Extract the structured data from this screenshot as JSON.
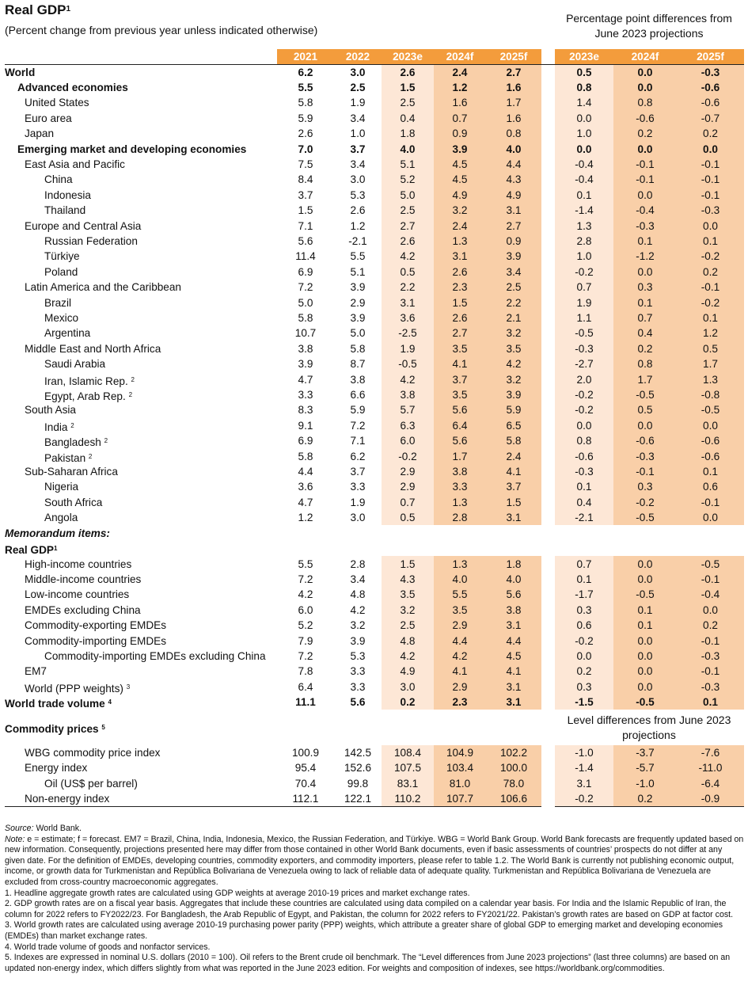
{
  "title": "Real GDP",
  "title_sup": "1",
  "subtitle": "(Percent change from previous year unless indicated otherwise)",
  "right_header": "Percentage point differences from June 2023 projections",
  "columns_left": [
    "2021",
    "2022",
    "2023e",
    "2024f",
    "2025f"
  ],
  "columns_right": [
    "2023e",
    "2024f",
    "2025f"
  ],
  "colors": {
    "header_orange": "#f39c3c",
    "shade_light": "#fde7d6",
    "shade_dark": "#f9cfa8"
  },
  "rows": [
    {
      "label": "World",
      "lvl": 0,
      "b": true,
      "v": [
        "6.2",
        "3.0",
        "2.6",
        "2.4",
        "2.7"
      ],
      "d": [
        "0.5",
        "0.0",
        "-0.3"
      ]
    },
    {
      "label": "Advanced economies",
      "lvl": 1,
      "b": true,
      "v": [
        "5.5",
        "2.5",
        "1.5",
        "1.2",
        "1.6"
      ],
      "d": [
        "0.8",
        "0.0",
        "-0.6"
      ]
    },
    {
      "label": "United States",
      "lvl": 2,
      "v": [
        "5.8",
        "1.9",
        "2.5",
        "1.6",
        "1.7"
      ],
      "d": [
        "1.4",
        "0.8",
        "-0.6"
      ]
    },
    {
      "label": "Euro area",
      "lvl": 2,
      "v": [
        "5.9",
        "3.4",
        "0.4",
        "0.7",
        "1.6"
      ],
      "d": [
        "0.0",
        "-0.6",
        "-0.7"
      ]
    },
    {
      "label": "Japan",
      "lvl": 2,
      "v": [
        "2.6",
        "1.0",
        "1.8",
        "0.9",
        "0.8"
      ],
      "d": [
        "1.0",
        "0.2",
        "0.2"
      ]
    },
    {
      "label": "Emerging market and developing economies",
      "lvl": 1,
      "b": true,
      "v": [
        "7.0",
        "3.7",
        "4.0",
        "3.9",
        "4.0"
      ],
      "d": [
        "0.0",
        "0.0",
        "0.0"
      ]
    },
    {
      "label": "East Asia and Pacific",
      "lvl": 2,
      "v": [
        "7.5",
        "3.4",
        "5.1",
        "4.5",
        "4.4"
      ],
      "d": [
        "-0.4",
        "-0.1",
        "-0.1"
      ]
    },
    {
      "label": "China",
      "lvl": 3,
      "v": [
        "8.4",
        "3.0",
        "5.2",
        "4.5",
        "4.3"
      ],
      "d": [
        "-0.4",
        "-0.1",
        "-0.1"
      ]
    },
    {
      "label": "Indonesia",
      "lvl": 3,
      "v": [
        "3.7",
        "5.3",
        "5.0",
        "4.9",
        "4.9"
      ],
      "d": [
        "0.1",
        "0.0",
        "-0.1"
      ]
    },
    {
      "label": "Thailand",
      "lvl": 3,
      "v": [
        "1.5",
        "2.6",
        "2.5",
        "3.2",
        "3.1"
      ],
      "d": [
        "-1.4",
        "-0.4",
        "-0.3"
      ]
    },
    {
      "label": "Europe and Central Asia",
      "lvl": 2,
      "v": [
        "7.1",
        "1.2",
        "2.7",
        "2.4",
        "2.7"
      ],
      "d": [
        "1.3",
        "-0.3",
        "0.0"
      ]
    },
    {
      "label": "Russian Federation",
      "lvl": 3,
      "v": [
        "5.6",
        "-2.1",
        "2.6",
        "1.3",
        "0.9"
      ],
      "d": [
        "2.8",
        "0.1",
        "0.1"
      ]
    },
    {
      "label": "Türkiye",
      "lvl": 3,
      "v": [
        "11.4",
        "5.5",
        "4.2",
        "3.1",
        "3.9"
      ],
      "d": [
        "1.0",
        "-1.2",
        "-0.2"
      ]
    },
    {
      "label": "Poland",
      "lvl": 3,
      "v": [
        "6.9",
        "5.1",
        "0.5",
        "2.6",
        "3.4"
      ],
      "d": [
        "-0.2",
        "0.0",
        "0.2"
      ]
    },
    {
      "label": "Latin America and the Caribbean",
      "lvl": 2,
      "v": [
        "7.2",
        "3.9",
        "2.2",
        "2.3",
        "2.5"
      ],
      "d": [
        "0.7",
        "0.3",
        "-0.1"
      ]
    },
    {
      "label": "Brazil",
      "lvl": 3,
      "v": [
        "5.0",
        "2.9",
        "3.1",
        "1.5",
        "2.2"
      ],
      "d": [
        "1.9",
        "0.1",
        "-0.2"
      ]
    },
    {
      "label": "Mexico",
      "lvl": 3,
      "v": [
        "5.8",
        "3.9",
        "3.6",
        "2.6",
        "2.1"
      ],
      "d": [
        "1.1",
        "0.7",
        "0.1"
      ]
    },
    {
      "label": "Argentina",
      "lvl": 3,
      "v": [
        "10.7",
        "5.0",
        "-2.5",
        "2.7",
        "3.2"
      ],
      "d": [
        "-0.5",
        "0.4",
        "1.2"
      ]
    },
    {
      "label": "Middle East and North Africa",
      "lvl": 2,
      "v": [
        "3.8",
        "5.8",
        "1.9",
        "3.5",
        "3.5"
      ],
      "d": [
        "-0.3",
        "0.2",
        "0.5"
      ]
    },
    {
      "label": "Saudi Arabia",
      "lvl": 3,
      "v": [
        "3.9",
        "8.7",
        "-0.5",
        "4.1",
        "4.2"
      ],
      "d": [
        "-2.7",
        "0.8",
        "1.7"
      ]
    },
    {
      "label": "Iran, Islamic Rep.",
      "sup": "2",
      "lvl": 3,
      "v": [
        "4.7",
        "3.8",
        "4.2",
        "3.7",
        "3.2"
      ],
      "d": [
        "2.0",
        "1.7",
        "1.3"
      ]
    },
    {
      "label": "Egypt, Arab Rep.",
      "sup": "2",
      "lvl": 3,
      "v": [
        "3.3",
        "6.6",
        "3.8",
        "3.5",
        "3.9"
      ],
      "d": [
        "-0.2",
        "-0.5",
        "-0.8"
      ]
    },
    {
      "label": "South Asia",
      "lvl": 2,
      "v": [
        "8.3",
        "5.9",
        "5.7",
        "5.6",
        "5.9"
      ],
      "d": [
        "-0.2",
        "0.5",
        "-0.5"
      ]
    },
    {
      "label": "India",
      "sup": "2",
      "lvl": 3,
      "v": [
        "9.1",
        "7.2",
        "6.3",
        "6.4",
        "6.5"
      ],
      "d": [
        "0.0",
        "0.0",
        "0.0"
      ]
    },
    {
      "label": "Bangladesh",
      "sup": "2",
      "lvl": 3,
      "v": [
        "6.9",
        "7.1",
        "6.0",
        "5.6",
        "5.8"
      ],
      "d": [
        "0.8",
        "-0.6",
        "-0.6"
      ]
    },
    {
      "label": "Pakistan",
      "sup": "2",
      "lvl": 3,
      "v": [
        "5.8",
        "6.2",
        "-0.2",
        "1.7",
        "2.4"
      ],
      "d": [
        "-0.6",
        "-0.3",
        "-0.6"
      ]
    },
    {
      "label": "Sub-Saharan Africa",
      "lvl": 2,
      "v": [
        "4.4",
        "3.7",
        "2.9",
        "3.8",
        "4.1"
      ],
      "d": [
        "-0.3",
        "-0.1",
        "0.1"
      ]
    },
    {
      "label": "Nigeria",
      "lvl": 3,
      "v": [
        "3.6",
        "3.3",
        "2.9",
        "3.3",
        "3.7"
      ],
      "d": [
        "0.1",
        "0.3",
        "0.6"
      ]
    },
    {
      "label": "South Africa",
      "lvl": 3,
      "v": [
        "4.7",
        "1.9",
        "0.7",
        "1.3",
        "1.5"
      ],
      "d": [
        "0.4",
        "-0.2",
        "-0.1"
      ]
    },
    {
      "label": "Angola",
      "lvl": 3,
      "v": [
        "1.2",
        "3.0",
        "0.5",
        "2.8",
        "3.1"
      ],
      "d": [
        "-2.1",
        "-0.5",
        "0.0"
      ]
    }
  ],
  "memo_title": "Memorandum items:",
  "memo_sub": "Real GDP",
  "memo_sub_sup": "1",
  "memo_rows": [
    {
      "label": "High-income countries",
      "lvl": 2,
      "v": [
        "5.5",
        "2.8",
        "1.5",
        "1.3",
        "1.8"
      ],
      "d": [
        "0.7",
        "0.0",
        "-0.5"
      ]
    },
    {
      "label": "Middle-income countries",
      "lvl": 2,
      "v": [
        "7.2",
        "3.4",
        "4.3",
        "4.0",
        "4.0"
      ],
      "d": [
        "0.1",
        "0.0",
        "-0.1"
      ]
    },
    {
      "label": "Low-income countries",
      "lvl": 2,
      "v": [
        "4.2",
        "4.8",
        "3.5",
        "5.5",
        "5.6"
      ],
      "d": [
        "-1.7",
        "-0.5",
        "-0.4"
      ]
    },
    {
      "label": "EMDEs excluding China",
      "lvl": 2,
      "v": [
        "6.0",
        "4.2",
        "3.2",
        "3.5",
        "3.8"
      ],
      "d": [
        "0.3",
        "0.1",
        "0.0"
      ]
    },
    {
      "label": "Commodity-exporting EMDEs",
      "lvl": 2,
      "v": [
        "5.2",
        "3.2",
        "2.5",
        "2.9",
        "3.1"
      ],
      "d": [
        "0.6",
        "0.1",
        "0.2"
      ]
    },
    {
      "label": "Commodity-importing EMDEs",
      "lvl": 2,
      "v": [
        "7.9",
        "3.9",
        "4.8",
        "4.4",
        "4.4"
      ],
      "d": [
        "-0.2",
        "0.0",
        "-0.1"
      ]
    },
    {
      "label": "Commodity-importing EMDEs excluding China",
      "lvl": 3,
      "v": [
        "7.2",
        "5.3",
        "4.2",
        "4.2",
        "4.5"
      ],
      "d": [
        "0.0",
        "0.0",
        "-0.3"
      ]
    },
    {
      "label": "EM7",
      "lvl": 2,
      "v": [
        "7.8",
        "3.3",
        "4.9",
        "4.1",
        "4.1"
      ],
      "d": [
        "0.2",
        "0.0",
        "-0.1"
      ]
    },
    {
      "label": "World (PPP weights)",
      "sup": "3",
      "lvl": 2,
      "v": [
        "6.4",
        "3.3",
        "3.0",
        "2.9",
        "3.1"
      ],
      "d": [
        "0.3",
        "0.0",
        "-0.3"
      ]
    },
    {
      "label": "World trade volume",
      "sup": "4",
      "lvl": 0,
      "b": true,
      "v": [
        "11.1",
        "5.6",
        "0.2",
        "2.3",
        "3.1"
      ],
      "d": [
        "-1.5",
        "-0.5",
        "0.1"
      ]
    }
  ],
  "commodity_title": "Commodity prices",
  "commodity_sup": "5",
  "level_header": "Level differences from June 2023 projections",
  "commodity_rows": [
    {
      "label": "WBG commodity price index",
      "lvl": 2,
      "v": [
        "100.9",
        "142.5",
        "108.4",
        "104.9",
        "102.2"
      ],
      "d": [
        "-1.0",
        "-3.7",
        "-7.6"
      ]
    },
    {
      "label": "Energy index",
      "lvl": 2,
      "v": [
        "95.4",
        "152.6",
        "107.5",
        "103.4",
        "100.0"
      ],
      "d": [
        "-1.4",
        "-5.7",
        "-11.0"
      ]
    },
    {
      "label": "Oil (US$ per barrel)",
      "lvl": 3,
      "v": [
        "70.4",
        "99.8",
        "83.1",
        "81.0",
        "78.0"
      ],
      "d": [
        "3.1",
        "-1.0",
        "-6.4"
      ]
    },
    {
      "label": "Non-energy index",
      "lvl": 2,
      "v": [
        "112.1",
        "122.1",
        "110.2",
        "107.7",
        "106.6"
      ],
      "d": [
        "-0.2",
        "0.2",
        "-0.9"
      ]
    }
  ],
  "notes": {
    "source_label": "Source:",
    "source_text": " World Bank.",
    "note_label": "Note:",
    "note_text": " e = estimate; f = forecast. EM7 = Brazil, China, India, Indonesia, Mexico, the Russian Federation, and Türkiye. WBG = World Bank Group. World Bank forecasts are frequently updated based on new information. Consequently, projections presented here may differ from those contained in other World Bank documents, even if basic assessments of countries’ prospects do not differ at any given date. For the definition of EMDEs, developing countries, commodity exporters, and commodity importers, please refer to table 1.2. The World Bank is currently not publishing economic output, income, or growth data for Turkmenistan and República Bolivariana de Venezuela owing to lack of reliable data of adequate quality. Turkmenistan and República Bolivariana de Venezuela are excluded from cross-country macroeconomic aggregates.",
    "n1": "1. Headline aggregate growth rates are calculated using GDP weights at average 2010-19 prices and market exchange rates.",
    "n2": "2. GDP growth rates are on a fiscal year basis. Aggregates that include these countries are calculated using data compiled on a calendar year basis. For India and the Islamic Republic of Iran, the column for 2022 refers to FY2022/23. For Bangladesh, the Arab Republic of Egypt, and Pakistan, the column for 2022 refers to FY2021/22. Pakistan’s growth rates are based on GDP at factor cost.",
    "n3": "3. World growth rates are calculated using average 2010-19 purchasing power parity (PPP) weights, which attribute a greater share of global GDP to emerging market and developing economies (EMDEs) than market exchange rates.",
    "n4": "4. World trade volume of goods and nonfactor services.",
    "n5": "5. Indexes are expressed in nominal U.S. dollars (2010 = 100). Oil refers to the Brent crude oil benchmark. The “Level differences from June 2023 projections” (last three columns) are based on an updated non-energy index, which differs slightly from what was reported in the June 2023 edition. For weights and composition of indexes, see https://worldbank.org/commodities."
  }
}
